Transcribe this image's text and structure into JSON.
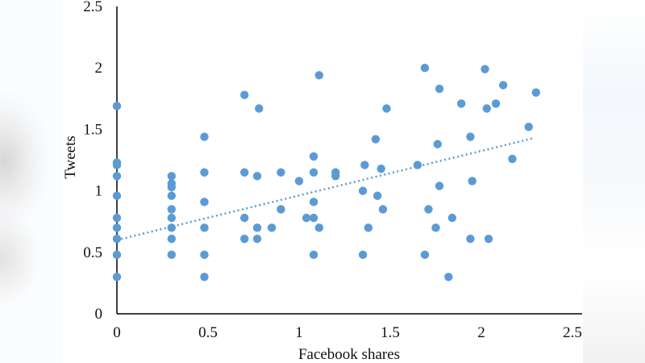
{
  "chart_data": {
    "type": "scatter",
    "title": "",
    "xlabel": "Facebook shares",
    "ylabel": "Tweets",
    "xlim": [
      0,
      2.5
    ],
    "ylim": [
      0,
      2.5
    ],
    "xticks": [
      "0",
      "0.5",
      "1",
      "1.5",
      "2",
      "2.5"
    ],
    "yticks": [
      "0",
      "0.5",
      "1",
      "1.5",
      "2",
      "2.5"
    ],
    "grid": false,
    "legend": null,
    "marker_color": "#5b9bd5",
    "trendline": {
      "style": "dotted",
      "color": "#5b9bd5",
      "type": "linear",
      "x": [
        0,
        2.29
      ],
      "y": [
        0.6,
        1.43
      ]
    },
    "points": [
      [
        0,
        1.69
      ],
      [
        0,
        1.23
      ],
      [
        0,
        1.21
      ],
      [
        0,
        1.12
      ],
      [
        0,
        0.96
      ],
      [
        0,
        0.78
      ],
      [
        0,
        0.7
      ],
      [
        0,
        0.61
      ],
      [
        0,
        0.48
      ],
      [
        0,
        0.3
      ],
      [
        0.3,
        1.12
      ],
      [
        0.3,
        1.06
      ],
      [
        0.3,
        1.03
      ],
      [
        0.3,
        0.96
      ],
      [
        0.3,
        0.85
      ],
      [
        0.3,
        0.78
      ],
      [
        0.3,
        0.7
      ],
      [
        0.3,
        0.61
      ],
      [
        0.3,
        0.48
      ],
      [
        0.48,
        1.44
      ],
      [
        0.48,
        1.15
      ],
      [
        0.48,
        0.91
      ],
      [
        0.48,
        0.7
      ],
      [
        0.48,
        0.48
      ],
      [
        0.48,
        0.3
      ],
      [
        0.7,
        1.78
      ],
      [
        0.78,
        1.67
      ],
      [
        0.7,
        1.15
      ],
      [
        0.77,
        1.12
      ],
      [
        0.7,
        0.78
      ],
      [
        0.77,
        0.7
      ],
      [
        0.7,
        0.61
      ],
      [
        0.77,
        0.61
      ],
      [
        0.85,
        0.7
      ],
      [
        0.9,
        1.15
      ],
      [
        0.9,
        0.85
      ],
      [
        1.0,
        1.08
      ],
      [
        1.04,
        0.78
      ],
      [
        1.08,
        1.28
      ],
      [
        1.08,
        1.15
      ],
      [
        1.08,
        0.91
      ],
      [
        1.08,
        0.78
      ],
      [
        1.08,
        0.48
      ],
      [
        1.11,
        1.94
      ],
      [
        1.11,
        0.7
      ],
      [
        1.2,
        1.15
      ],
      [
        1.2,
        1.12
      ],
      [
        1.35,
        1.0
      ],
      [
        1.35,
        0.48
      ],
      [
        1.36,
        1.21
      ],
      [
        1.38,
        0.7
      ],
      [
        1.42,
        1.42
      ],
      [
        1.43,
        0.96
      ],
      [
        1.45,
        1.18
      ],
      [
        1.46,
        0.85
      ],
      [
        1.48,
        1.67
      ],
      [
        1.65,
        1.21
      ],
      [
        1.69,
        2.0
      ],
      [
        1.69,
        0.48
      ],
      [
        1.71,
        0.85
      ],
      [
        1.75,
        0.7
      ],
      [
        1.76,
        1.38
      ],
      [
        1.77,
        1.04
      ],
      [
        1.77,
        1.83
      ],
      [
        1.82,
        0.3
      ],
      [
        1.84,
        0.78
      ],
      [
        1.89,
        1.71
      ],
      [
        1.94,
        0.61
      ],
      [
        1.94,
        1.44
      ],
      [
        1.95,
        1.08
      ],
      [
        2.02,
        1.99
      ],
      [
        2.03,
        1.67
      ],
      [
        2.04,
        0.61
      ],
      [
        2.08,
        1.71
      ],
      [
        2.12,
        1.86
      ],
      [
        2.17,
        1.26
      ],
      [
        2.26,
        1.52
      ],
      [
        2.3,
        1.8
      ]
    ]
  }
}
